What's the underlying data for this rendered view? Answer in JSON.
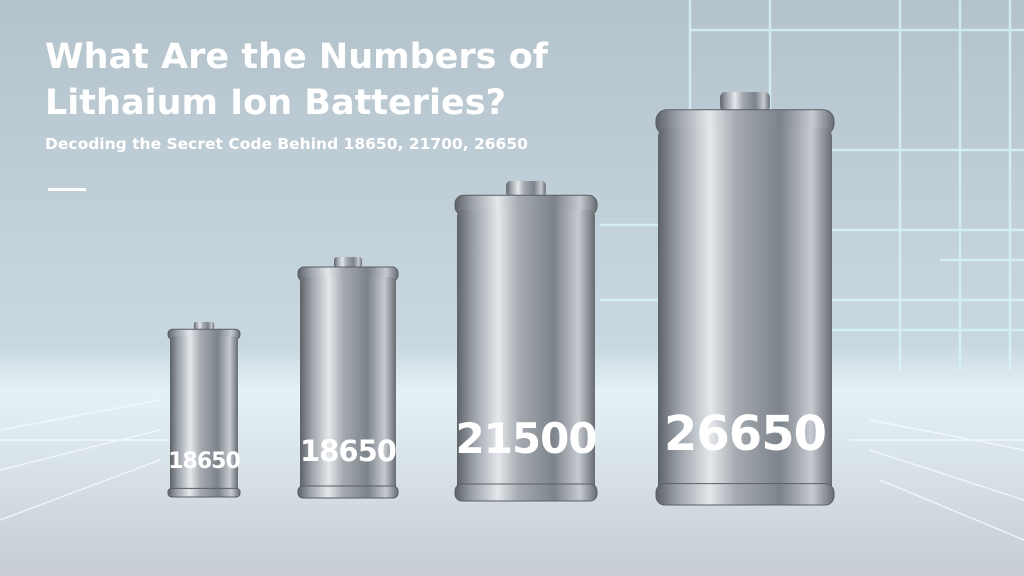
{
  "header": {
    "title_lines": [
      "What Are the Numbers of",
      "Lithaium Ion Batteries?"
    ],
    "subtitle": "Decoding the Secret Code Behind 18650, 21700, 26650"
  },
  "batteries": [
    {
      "label": "18650"
    },
    {
      "label": "18650"
    },
    {
      "label": "21500"
    },
    {
      "label": "26650"
    }
  ]
}
